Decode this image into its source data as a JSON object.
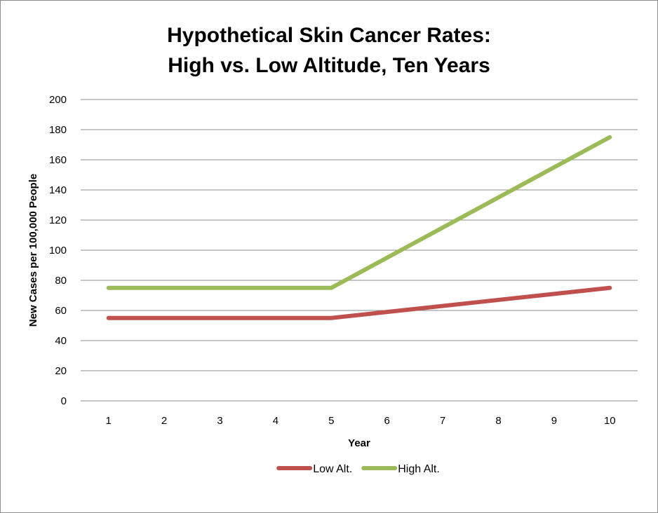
{
  "chart_data": {
    "type": "line",
    "title": [
      "Hypothetical Skin Cancer Rates:",
      "High vs. Low Altitude, Ten Years"
    ],
    "xlabel": "Year",
    "ylabel": "New  Cases per 100,000 People",
    "categories": [
      "1",
      "2",
      "3",
      "4",
      "5",
      "6",
      "7",
      "8",
      "9",
      "10"
    ],
    "ylim": [
      0,
      200
    ],
    "yticks": [
      0,
      20,
      40,
      60,
      80,
      100,
      120,
      140,
      160,
      180,
      200
    ],
    "grid": true,
    "legend_position": "bottom",
    "series": [
      {
        "name": "Low Alt.",
        "color": "#c0504d",
        "values": [
          55,
          55,
          55,
          55,
          55,
          59,
          63,
          67,
          71,
          75
        ]
      },
      {
        "name": "High Alt.",
        "color": "#9bbb59",
        "values": [
          75,
          75,
          75,
          75,
          75,
          95,
          115,
          135,
          155,
          175
        ]
      }
    ]
  }
}
